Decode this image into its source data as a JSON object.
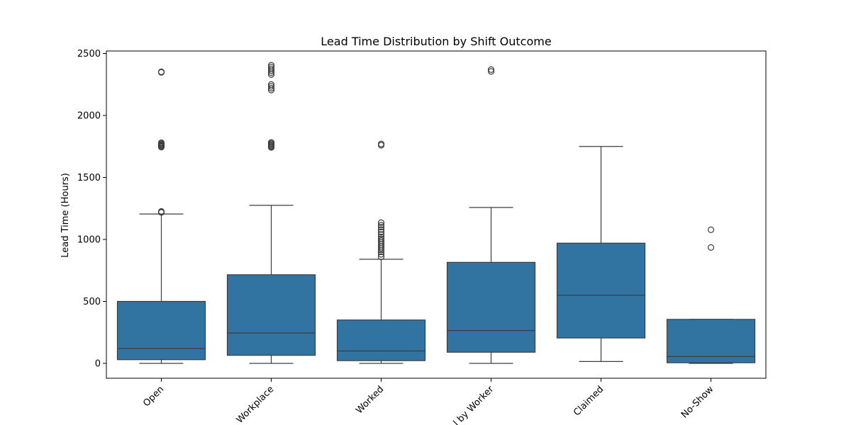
{
  "chart_data": {
    "type": "boxplot",
    "title": "Lead Time Distribution by Shift Outcome",
    "xlabel": "",
    "ylabel": "Lead Time (Hours)",
    "ylim": [
      -120,
      2520
    ],
    "yticks": [
      0,
      500,
      1000,
      1500,
      2000,
      2500
    ],
    "ytick_labels": [
      "0",
      "500",
      "1000",
      "1500",
      "2000",
      "2500"
    ],
    "categories": [
      "Open",
      "Workplace",
      "Worked",
      "l by Worker",
      "Claimed",
      "No-Show"
    ],
    "color": "#3274a1",
    "line_color": "#3d3d3d",
    "boxes": [
      {
        "category": "Open",
        "whisker_low": 0,
        "q1": 30,
        "median": 120,
        "q3": 500,
        "whisker_high": 1205,
        "outliers": [
          1218,
          1222,
          1226,
          1745,
          1752,
          1758,
          1765,
          1772,
          1780,
          2348,
          2352
        ]
      },
      {
        "category": "Workplace",
        "whisker_low": 0,
        "q1": 65,
        "median": 245,
        "q3": 715,
        "whisker_high": 1275,
        "outliers": [
          1742,
          1750,
          1758,
          1766,
          1774,
          1782,
          2205,
          2220,
          2235,
          2250,
          2330,
          2345,
          2360,
          2375,
          2390,
          2405
        ]
      },
      {
        "category": "Worked",
        "whisker_low": 0,
        "q1": 22,
        "median": 100,
        "q3": 350,
        "whisker_high": 840,
        "outliers": [
          860,
          880,
          900,
          915,
          930,
          945,
          960,
          975,
          990,
          1005,
          1020,
          1040,
          1060,
          1080,
          1100,
          1115,
          1135,
          1760,
          1770
        ]
      },
      {
        "category": "l by Worker",
        "whisker_low": 0,
        "q1": 90,
        "median": 265,
        "q3": 815,
        "whisker_high": 1258,
        "outliers": [
          2355,
          2370
        ]
      },
      {
        "category": "Claimed",
        "whisker_low": 15,
        "q1": 205,
        "median": 550,
        "q3": 970,
        "whisker_high": 1750,
        "outliers": []
      },
      {
        "category": "No-Show",
        "whisker_low": 0,
        "q1": 5,
        "median": 55,
        "q3": 355,
        "whisker_high": 355,
        "outliers": [
          935,
          1078
        ]
      }
    ],
    "grid": false,
    "legend": "none"
  }
}
